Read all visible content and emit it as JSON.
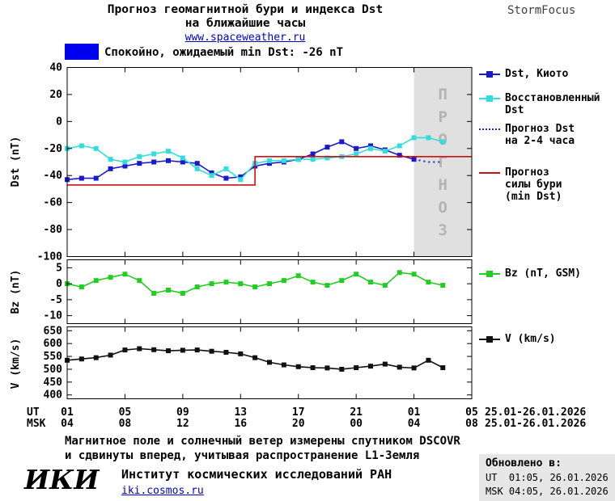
{
  "header": {
    "title_line1": "Прогноз геомагнитной бури и индекса Dst",
    "title_line2": "на ближайшие часы",
    "site_link": "www.spaceweather.ru",
    "brand": "StormFocus"
  },
  "status": {
    "swatch_color": "#0000ee",
    "text": "Спокойно, ожидаемый min Dst: -26 nT"
  },
  "chart_data": [
    {
      "type": "line",
      "panel": "dst",
      "ylabel": "Dst (nT)",
      "ylim": [
        -100,
        40
      ],
      "yticks": [
        40,
        20,
        0,
        -20,
        -40,
        -60,
        -80,
        -100
      ],
      "x_hours": {
        "min": 1,
        "max": 29,
        "tick_hours": [
          1,
          5,
          9,
          13,
          17,
          21,
          25,
          29
        ]
      },
      "forecast_region": {
        "start_hour": 25,
        "end_hour": 29,
        "label": "ПРОГНОЗ",
        "fill": "#e0e0e0",
        "text_color": "#b4b4b4"
      },
      "legend_position": "right",
      "series": [
        {
          "name": "Dst, Киото",
          "color": "#1a1acc",
          "marker": "square",
          "line": "solid",
          "x": [
            1,
            2,
            3,
            4,
            5,
            6,
            7,
            8,
            9,
            10,
            11,
            12,
            13,
            14,
            15,
            16,
            17,
            18,
            19,
            20,
            21,
            22,
            23,
            24,
            25
          ],
          "values": [
            -43,
            -42,
            -42,
            -35,
            -33,
            -31,
            -30,
            -29,
            -30,
            -31,
            -38,
            -42,
            -41,
            -33,
            -31,
            -30,
            -28,
            -24,
            -19,
            -15,
            -20,
            -18,
            -21,
            -25,
            -28
          ]
        },
        {
          "name": "Восстановленный Dst",
          "color": "#33dddd",
          "marker": "square",
          "line": "solid",
          "x": [
            1,
            2,
            3,
            4,
            5,
            6,
            7,
            8,
            9,
            10,
            11,
            12,
            13,
            14,
            15,
            16,
            17,
            18,
            19,
            20,
            21,
            22,
            23,
            24,
            25,
            26,
            27
          ],
          "values": [
            -20,
            -18,
            -20,
            -28,
            -30,
            -26,
            -24,
            -22,
            -27,
            -35,
            -40,
            -35,
            -43,
            -31,
            -29,
            -29,
            -28,
            -28,
            -27,
            -26,
            -24,
            -20,
            -22,
            -18,
            -12,
            -12,
            -15
          ]
        },
        {
          "name": "Прогноз Dst на 2-4 часа",
          "color": "#2222bb",
          "marker": "none",
          "line": "dotted",
          "x": [
            25,
            26,
            27
          ],
          "values": [
            -28,
            -30,
            -30
          ]
        },
        {
          "name": "Прогноз силы бури (min Dst)",
          "color": "#cc1111",
          "marker": "none",
          "line": "solid",
          "x": [
            1,
            14,
            14,
            29
          ],
          "values": [
            -47,
            -47,
            -26,
            -26
          ]
        }
      ]
    },
    {
      "type": "line",
      "panel": "bz",
      "ylabel": "Bz (nT)",
      "ylim": [
        -12.5,
        7.5
      ],
      "yticks": [
        5,
        0,
        -5,
        -10
      ],
      "x_hours": {
        "min": 1,
        "max": 29,
        "tick_hours": [
          1,
          5,
          9,
          13,
          17,
          21,
          25,
          29
        ]
      },
      "legend_position": "right",
      "series": [
        {
          "name": "Bz (nT, GSM)",
          "color": "#22cc22",
          "marker": "square",
          "line": "solid",
          "x": [
            1,
            2,
            3,
            4,
            5,
            6,
            7,
            8,
            9,
            10,
            11,
            12,
            13,
            14,
            15,
            16,
            17,
            18,
            19,
            20,
            21,
            22,
            23,
            24,
            25,
            26,
            27
          ],
          "values": [
            0,
            -1,
            1,
            2,
            3,
            1,
            -3,
            -2,
            -3,
            -1,
            0,
            0.5,
            0,
            -1,
            0,
            1,
            2.5,
            0.5,
            -0.5,
            1,
            3,
            0.5,
            -0.5,
            3.5,
            3,
            0.5,
            -0.5
          ]
        }
      ]
    },
    {
      "type": "line",
      "panel": "v",
      "ylabel": "V (km/s)",
      "ylim": [
        385,
        665
      ],
      "yticks": [
        650,
        600,
        550,
        500,
        450,
        400
      ],
      "x_hours": {
        "min": 1,
        "max": 29,
        "tick_hours": [
          1,
          5,
          9,
          13,
          17,
          21,
          25,
          29
        ]
      },
      "legend_position": "right",
      "series": [
        {
          "name": "V (km/s)",
          "color": "#111111",
          "marker": "square",
          "line": "solid",
          "x": [
            1,
            2,
            3,
            4,
            5,
            6,
            7,
            8,
            9,
            10,
            11,
            12,
            13,
            14,
            15,
            16,
            17,
            18,
            19,
            20,
            21,
            22,
            23,
            24,
            25,
            26,
            27
          ],
          "values": [
            535,
            540,
            545,
            555,
            575,
            580,
            576,
            572,
            574,
            575,
            570,
            566,
            560,
            545,
            527,
            517,
            510,
            506,
            505,
            500,
            506,
            512,
            520,
            508,
            505,
            535,
            506
          ]
        }
      ]
    }
  ],
  "xaxis": {
    "rows": [
      {
        "label": "UT",
        "ticks": [
          "01",
          "05",
          "09",
          "13",
          "17",
          "21",
          "01",
          "05"
        ],
        "date_range": "25.01-26.01.2026"
      },
      {
        "label": "MSK",
        "ticks": [
          "04",
          "08",
          "12",
          "16",
          "20",
          "00",
          "04",
          "08"
        ],
        "date_range": "25.01-26.01.2026"
      }
    ]
  },
  "legends": {
    "dst": [
      {
        "label": "Dst, Киото",
        "color": "#1a1acc",
        "style": "solid",
        "marker": true
      },
      {
        "label": "Восстановленный\nDst",
        "color": "#33dddd",
        "style": "solid",
        "marker": true
      },
      {
        "label": "Прогноз Dst\nна 2-4 часа",
        "color": "#2222bb",
        "style": "dotted",
        "marker": false
      },
      {
        "label": "Прогноз\nсилы бури\n(min Dst)",
        "color": "#cc1111",
        "style": "solid",
        "marker": false
      }
    ],
    "bz": [
      {
        "label": "Bz (nT, GSM)",
        "color": "#22cc22",
        "style": "solid",
        "marker": true
      }
    ],
    "v": [
      {
        "label": "V (km/s)",
        "color": "#111111",
        "style": "solid",
        "marker": true
      }
    ]
  },
  "notes": {
    "line1": "Магнитное поле и солнечный ветер измерены спутником DSCOVR",
    "line2": "и сдвинуты вперед, учитывая распространение L1-Земля"
  },
  "footer": {
    "logo": "ИКИ",
    "institute": "Институт космических исследований РАН",
    "site": "iki.cosmos.ru",
    "updated_label": "Обновлено в:",
    "updated_ut": "UT  01:05, 26.01.2026",
    "updated_msk": "MSK 04:05, 26.01.2026"
  }
}
